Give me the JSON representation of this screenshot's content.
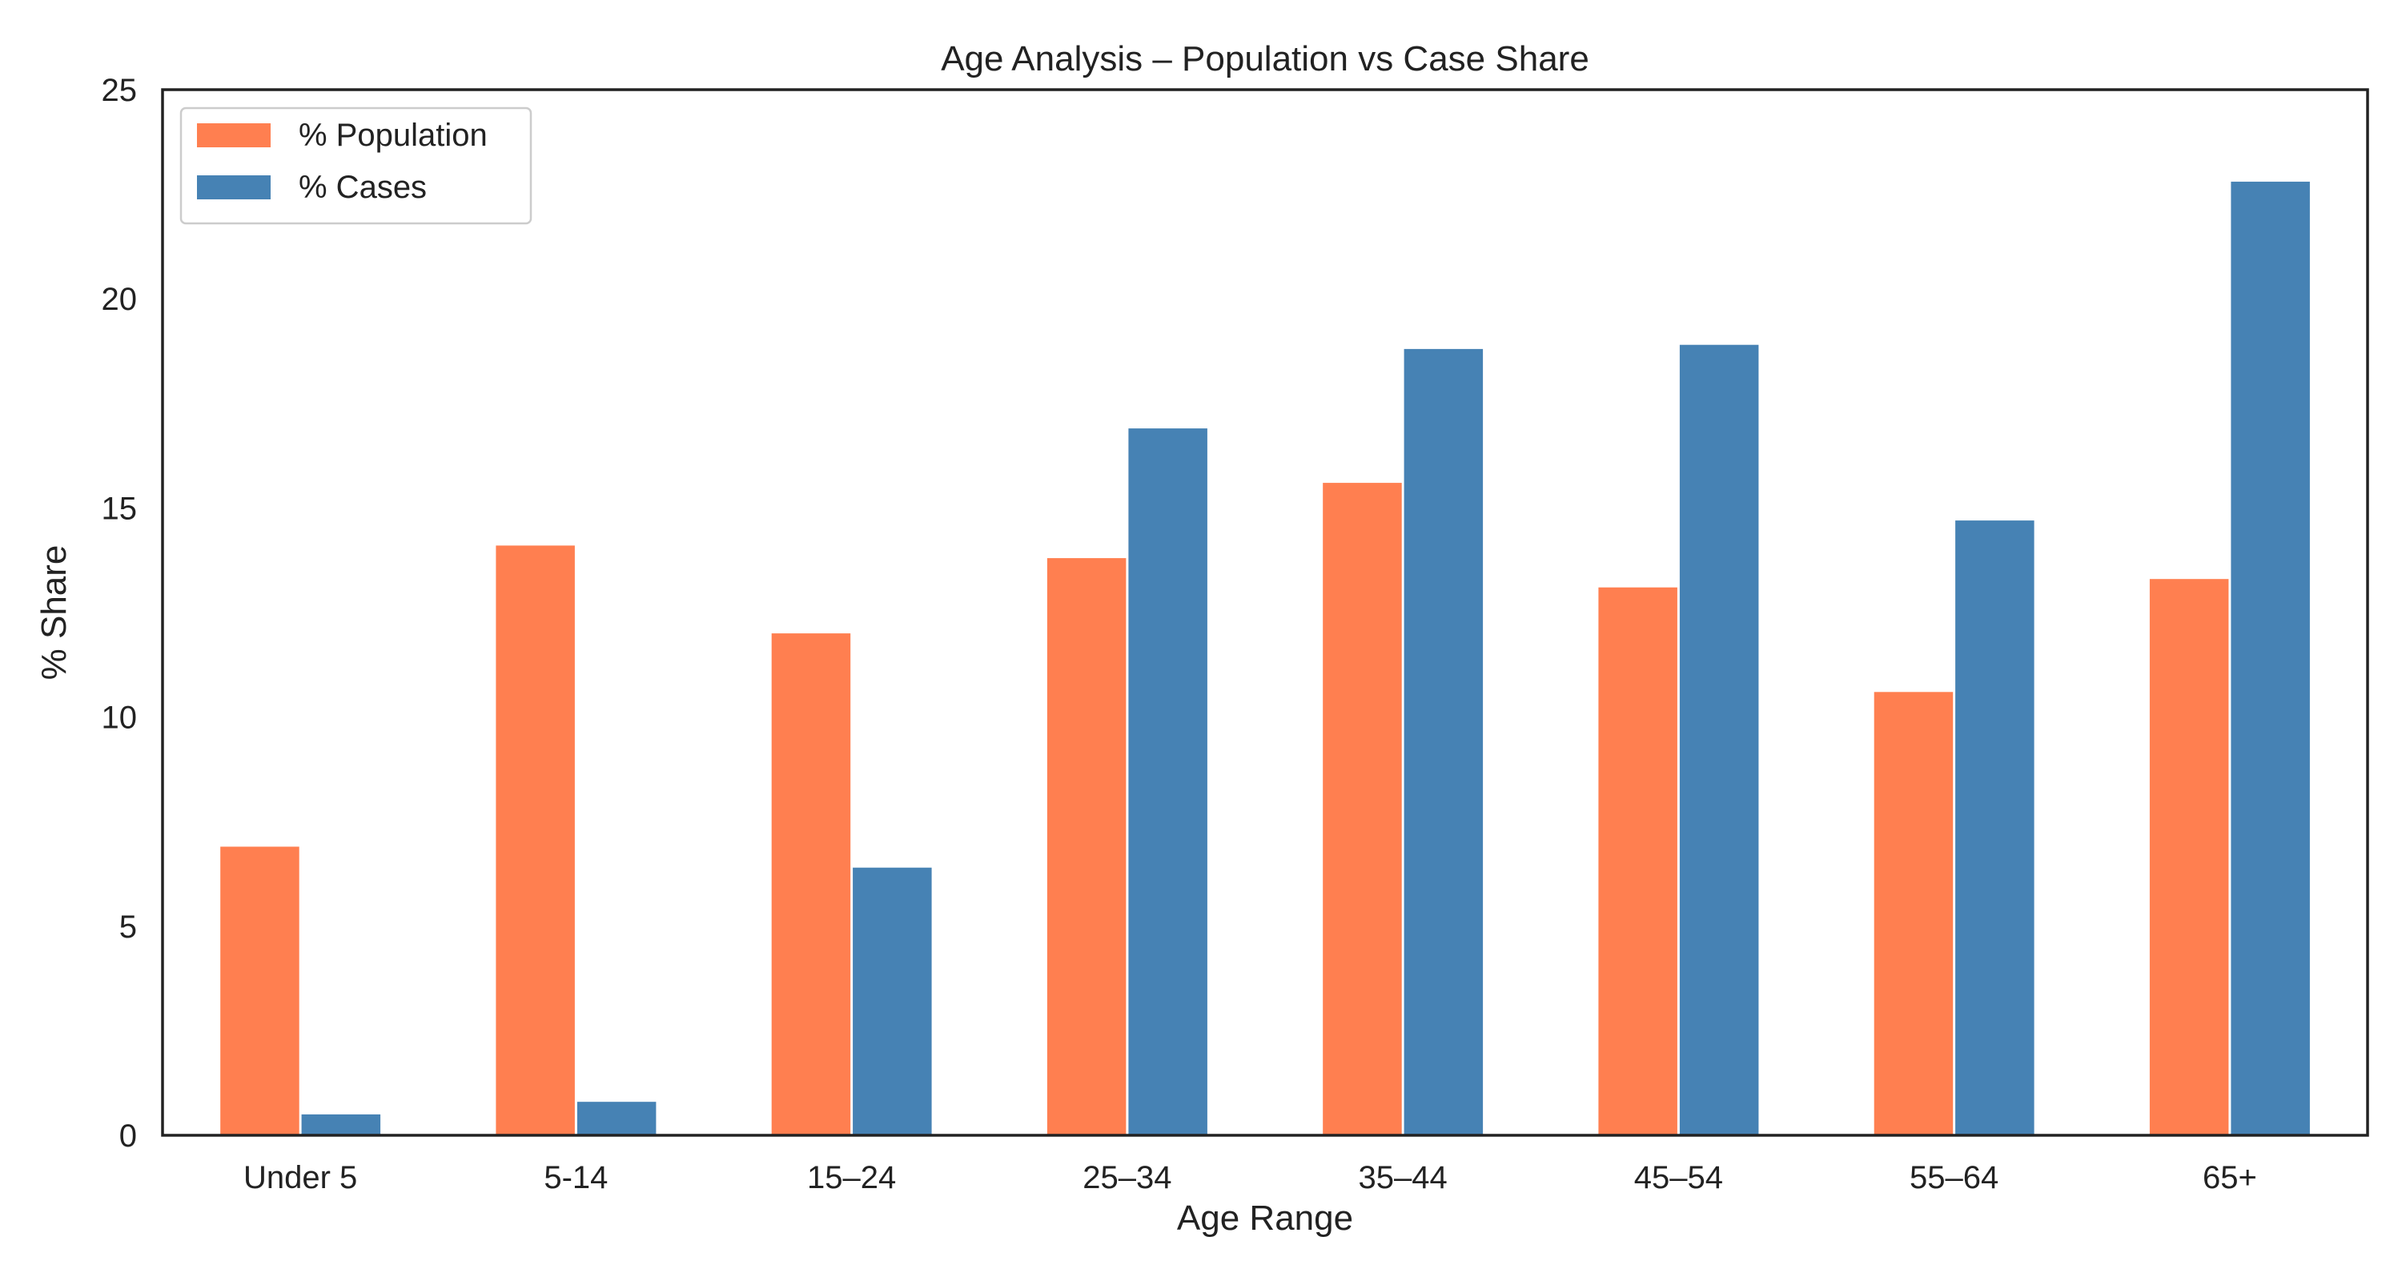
{
  "chart_data": {
    "type": "bar",
    "title": "Age Analysis – Population vs Case Share",
    "xlabel": "Age Range",
    "ylabel": "% Share",
    "categories": [
      "Under 5",
      "5-14",
      "15–24",
      "25–34",
      "35–44",
      "45–54",
      "55–64",
      "65+"
    ],
    "series": [
      {
        "name": "% Population",
        "color": "#FF7F50",
        "values": [
          6.9,
          14.1,
          12.0,
          13.8,
          15.6,
          13.1,
          10.6,
          13.3
        ]
      },
      {
        "name": "% Cases",
        "color": "#4682B4",
        "values": [
          0.5,
          0.8,
          6.4,
          16.9,
          18.8,
          18.9,
          14.7,
          22.8
        ]
      }
    ],
    "ylim": [
      0,
      25
    ],
    "yticks": [
      0,
      5,
      10,
      15,
      20,
      25
    ],
    "grid": false,
    "legend_position": "top-left"
  }
}
